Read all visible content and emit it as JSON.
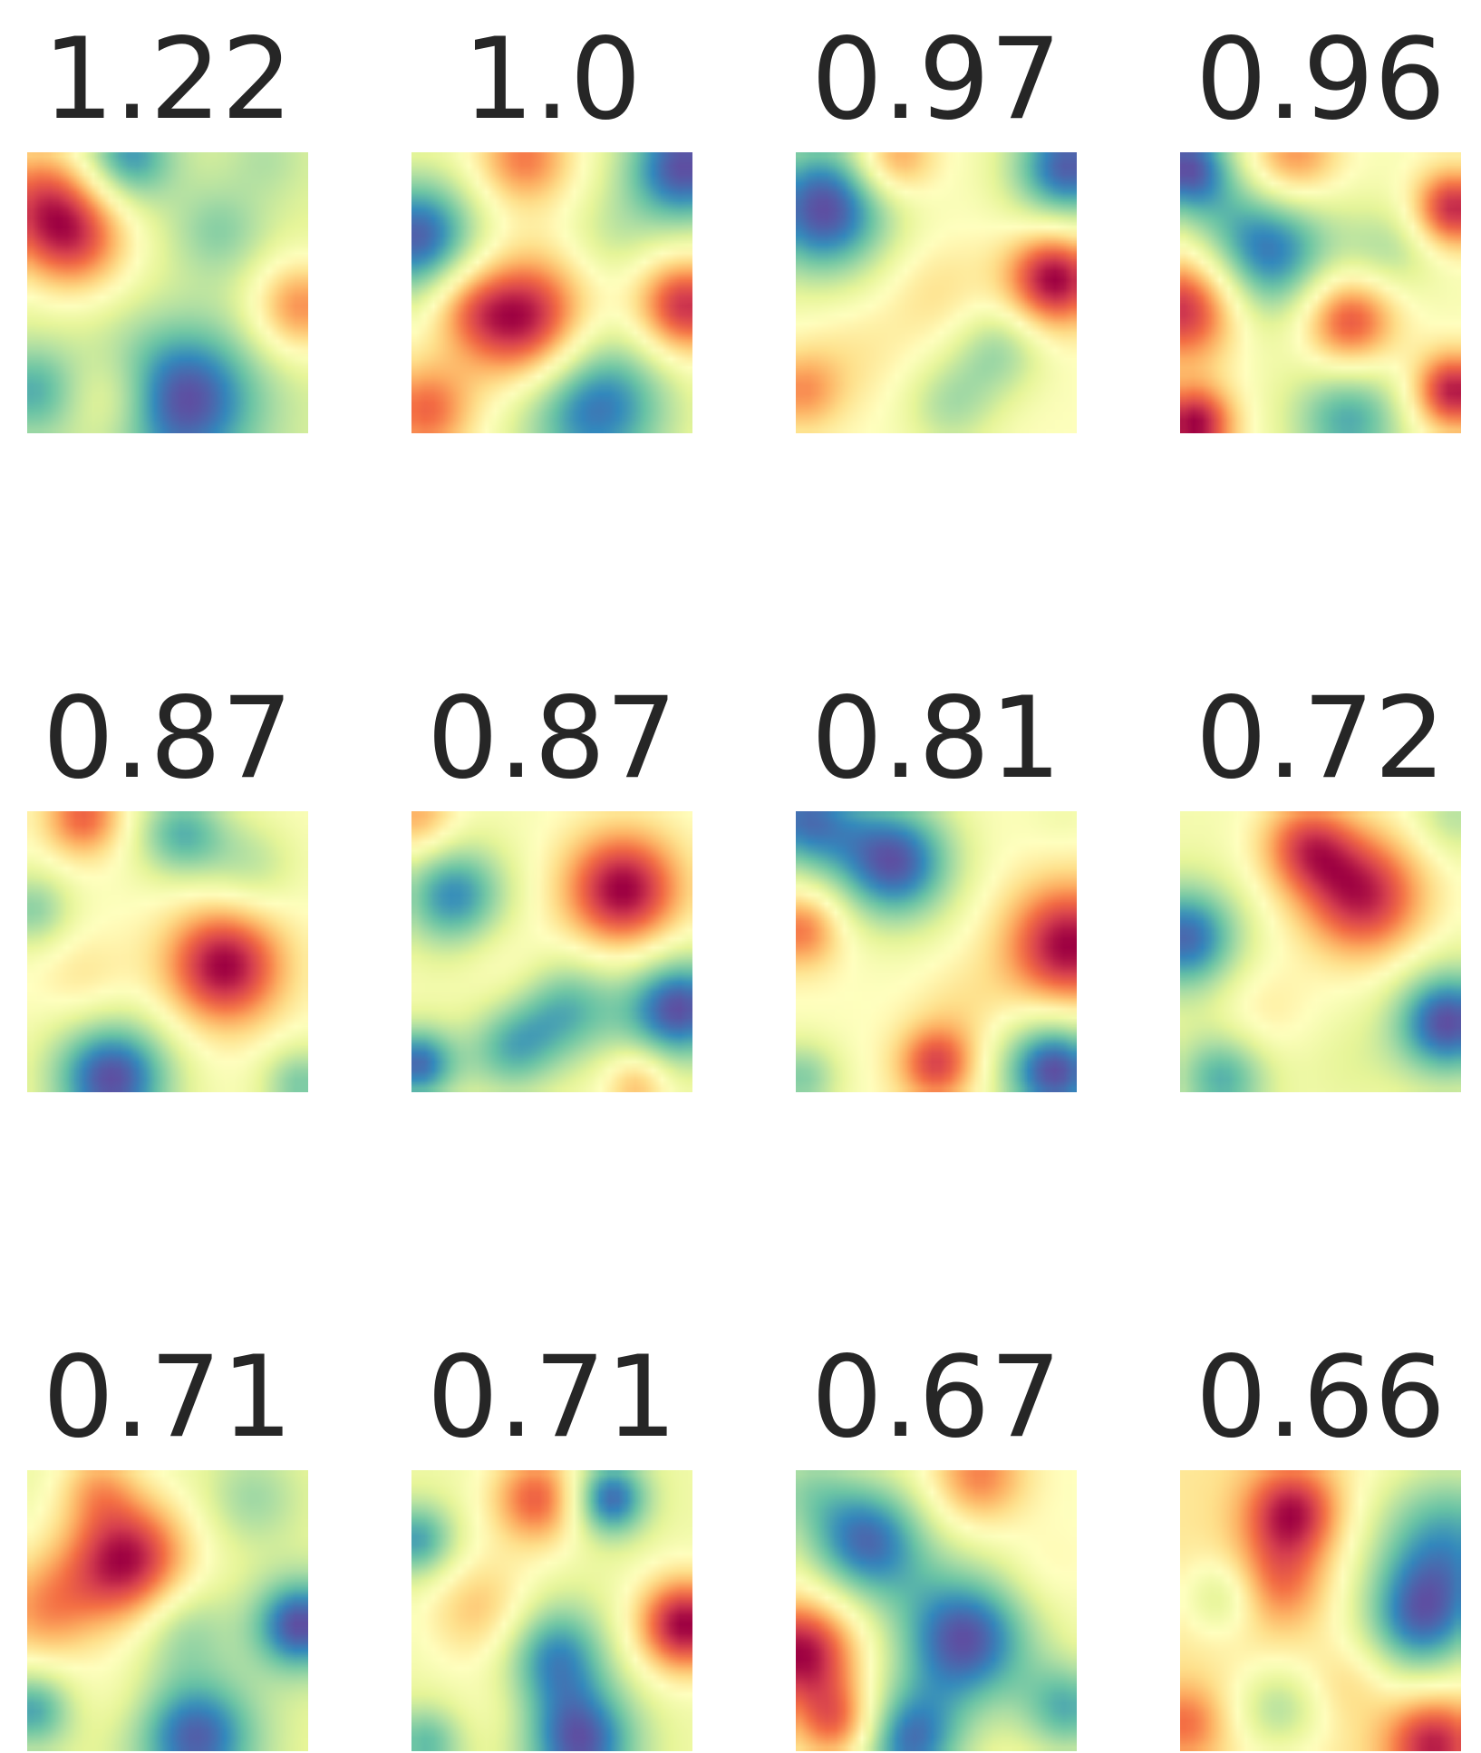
{
  "chart_data": {
    "type": "heatmap",
    "colormap": "Spectral_r",
    "colormap_stops": [
      "#5e4fa2",
      "#3288bd",
      "#66c2a5",
      "#abdda4",
      "#e6f598",
      "#ffffbf",
      "#fee08b",
      "#fdae61",
      "#f46d43",
      "#d53e4f",
      "#9e0142"
    ],
    "grid": false,
    "layout": {
      "rows": 3,
      "columns": 4
    },
    "panels": [
      {
        "title": "1.22",
        "hotspots": [
          [
            0.05,
            0.18,
            0.16,
            1.0
          ],
          [
            0.18,
            0.32,
            0.14,
            0.8
          ],
          [
            0.97,
            0.55,
            0.12,
            0.85
          ],
          [
            0.55,
            0.88,
            0.2,
            -1.0
          ],
          [
            0.35,
            0.02,
            0.12,
            -0.75
          ],
          [
            0.68,
            0.28,
            0.12,
            -0.35
          ],
          [
            0.02,
            0.85,
            0.12,
            -0.55
          ],
          [
            0.3,
            0.88,
            0.12,
            0.4
          ],
          [
            0.5,
            0.55,
            0.15,
            0.05
          ],
          [
            0.85,
            0.02,
            0.1,
            -0.2
          ]
        ]
      },
      {
        "title": "1.0",
        "hotspots": [
          [
            0.4,
            0.6,
            0.16,
            1.0
          ],
          [
            0.97,
            0.55,
            0.12,
            0.85
          ],
          [
            0.05,
            0.92,
            0.12,
            0.6
          ],
          [
            0.4,
            0.02,
            0.12,
            0.55
          ],
          [
            0.02,
            0.3,
            0.16,
            -0.85
          ],
          [
            0.97,
            0.05,
            0.16,
            -0.9
          ],
          [
            0.65,
            0.9,
            0.2,
            -0.8
          ],
          [
            0.7,
            0.3,
            0.12,
            -0.2
          ],
          [
            0.2,
            0.55,
            0.1,
            0.3
          ]
        ]
      },
      {
        "title": "0.97",
        "hotspots": [
          [
            0.92,
            0.45,
            0.12,
            1.0
          ],
          [
            0.1,
            0.2,
            0.18,
            -0.95
          ],
          [
            0.97,
            0.05,
            0.15,
            -0.9
          ],
          [
            0.35,
            0.02,
            0.1,
            0.55
          ],
          [
            0.55,
            0.9,
            0.12,
            -0.35
          ],
          [
            0.72,
            0.7,
            0.12,
            -0.4
          ],
          [
            0.2,
            0.72,
            0.14,
            0.15
          ],
          [
            0.02,
            0.85,
            0.1,
            0.45
          ],
          [
            0.5,
            0.5,
            0.14,
            0.2
          ]
        ]
      },
      {
        "title": "0.96",
        "hotspots": [
          [
            0.02,
            0.55,
            0.14,
            0.95
          ],
          [
            0.05,
            0.97,
            0.1,
            1.0
          ],
          [
            0.97,
            0.85,
            0.1,
            0.95
          ],
          [
            0.97,
            0.2,
            0.1,
            0.9
          ],
          [
            0.6,
            0.6,
            0.12,
            0.8
          ],
          [
            0.4,
            0.02,
            0.12,
            0.6
          ],
          [
            0.3,
            0.35,
            0.18,
            -0.8
          ],
          [
            0.6,
            0.95,
            0.15,
            -0.6
          ],
          [
            0.02,
            0.05,
            0.12,
            -0.85
          ],
          [
            0.75,
            0.35,
            0.12,
            -0.3
          ]
        ]
      },
      {
        "title": "0.87",
        "hotspots": [
          [
            0.7,
            0.55,
            0.15,
            1.0
          ],
          [
            0.2,
            0.02,
            0.1,
            0.65
          ],
          [
            0.55,
            0.08,
            0.12,
            -0.6
          ],
          [
            0.3,
            0.95,
            0.16,
            -0.95
          ],
          [
            0.02,
            0.35,
            0.1,
            -0.45
          ],
          [
            0.97,
            0.97,
            0.1,
            -0.5
          ],
          [
            0.8,
            0.2,
            0.12,
            -0.3
          ],
          [
            0.2,
            0.6,
            0.12,
            0.2
          ]
        ]
      },
      {
        "title": "0.87",
        "hotspots": [
          [
            0.75,
            0.28,
            0.15,
            1.0
          ],
          [
            0.02,
            0.02,
            0.1,
            0.45
          ],
          [
            0.15,
            0.3,
            0.14,
            -0.7
          ],
          [
            0.95,
            0.7,
            0.14,
            -0.9
          ],
          [
            0.55,
            0.7,
            0.14,
            -0.55
          ],
          [
            0.02,
            0.9,
            0.1,
            -0.8
          ],
          [
            0.35,
            0.85,
            0.12,
            -0.5
          ],
          [
            0.8,
            0.97,
            0.08,
            0.4
          ],
          [
            0.35,
            0.55,
            0.12,
            0.15
          ]
        ]
      },
      {
        "title": "0.81",
        "hotspots": [
          [
            0.97,
            0.48,
            0.16,
            1.0
          ],
          [
            0.02,
            0.42,
            0.1,
            0.6
          ],
          [
            0.5,
            0.9,
            0.1,
            0.75
          ],
          [
            0.35,
            0.18,
            0.16,
            -0.95
          ],
          [
            0.02,
            0.02,
            0.14,
            -0.8
          ],
          [
            0.92,
            0.92,
            0.14,
            -1.0
          ],
          [
            0.02,
            0.95,
            0.1,
            -0.5
          ],
          [
            0.95,
            0.02,
            0.1,
            -0.1
          ],
          [
            0.6,
            0.7,
            0.12,
            0.15
          ]
        ]
      },
      {
        "title": "0.72",
        "hotspots": [
          [
            0.65,
            0.3,
            0.16,
            1.0
          ],
          [
            0.45,
            0.12,
            0.12,
            0.75
          ],
          [
            0.02,
            0.45,
            0.14,
            -0.85
          ],
          [
            0.95,
            0.75,
            0.14,
            -0.95
          ],
          [
            0.15,
            0.95,
            0.12,
            -0.6
          ],
          [
            0.97,
            0.02,
            0.1,
            -0.3
          ],
          [
            0.3,
            0.7,
            0.12,
            0.2
          ],
          [
            0.6,
            0.9,
            0.12,
            -0.1
          ]
        ]
      },
      {
        "title": "0.71",
        "hotspots": [
          [
            0.35,
            0.32,
            0.16,
            1.0
          ],
          [
            0.05,
            0.5,
            0.14,
            0.5
          ],
          [
            0.25,
            0.05,
            0.1,
            0.35
          ],
          [
            0.6,
            0.95,
            0.16,
            -0.7
          ],
          [
            0.97,
            0.55,
            0.12,
            -0.75
          ],
          [
            0.02,
            0.85,
            0.1,
            -0.5
          ],
          [
            0.8,
            0.1,
            0.12,
            -0.25
          ],
          [
            0.55,
            0.55,
            0.12,
            -0.3
          ],
          [
            0.3,
            0.8,
            0.12,
            0.1
          ]
        ]
      },
      {
        "title": "0.71",
        "hotspots": [
          [
            0.97,
            0.55,
            0.12,
            1.0
          ],
          [
            0.45,
            0.1,
            0.12,
            0.7
          ],
          [
            0.25,
            0.5,
            0.14,
            0.4
          ],
          [
            0.7,
            0.1,
            0.1,
            -0.75
          ],
          [
            0.02,
            0.25,
            0.1,
            -0.55
          ],
          [
            0.5,
            0.65,
            0.14,
            -0.6
          ],
          [
            0.6,
            0.97,
            0.15,
            -0.75
          ],
          [
            0.05,
            0.97,
            0.1,
            -0.45
          ],
          [
            0.3,
            0.85,
            0.12,
            0.1
          ]
        ]
      },
      {
        "title": "0.67",
        "hotspots": [
          [
            0.02,
            0.65,
            0.14,
            1.0
          ],
          [
            0.15,
            0.9,
            0.1,
            0.65
          ],
          [
            0.65,
            0.02,
            0.12,
            0.55
          ],
          [
            0.25,
            0.25,
            0.16,
            -0.85
          ],
          [
            0.6,
            0.6,
            0.18,
            -0.95
          ],
          [
            0.97,
            0.85,
            0.12,
            -0.6
          ],
          [
            0.4,
            0.97,
            0.14,
            -0.8
          ],
          [
            0.02,
            0.05,
            0.12,
            -0.3
          ],
          [
            0.88,
            0.35,
            0.1,
            0.1
          ]
        ]
      },
      {
        "title": "0.66",
        "hotspots": [
          [
            0.4,
            0.15,
            0.12,
            1.0
          ],
          [
            0.35,
            0.4,
            0.12,
            0.55
          ],
          [
            0.9,
            0.97,
            0.12,
            0.95
          ],
          [
            0.02,
            0.9,
            0.1,
            0.55
          ],
          [
            0.95,
            0.25,
            0.22,
            -1.0
          ],
          [
            0.85,
            0.55,
            0.16,
            -0.95
          ],
          [
            0.15,
            0.45,
            0.1,
            -0.5
          ],
          [
            0.35,
            0.85,
            0.12,
            -0.6
          ],
          [
            0.6,
            0.75,
            0.1,
            0.2
          ]
        ]
      }
    ]
  }
}
